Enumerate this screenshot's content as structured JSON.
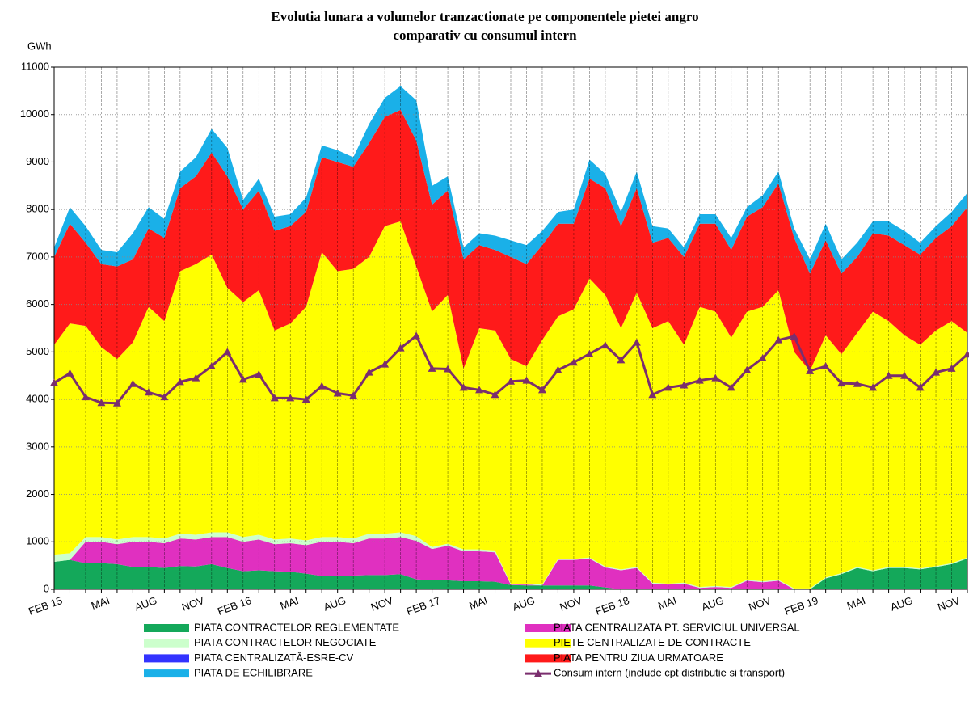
{
  "chart_data": {
    "type": "stacked_area",
    "title": "Evolutia lunara a volumelor tranzactionate pe componentele pietei angro",
    "subtitle": "comparativ cu consumul intern",
    "y_label": "GWh",
    "categories": [
      "FEB 15",
      null,
      null,
      "MAI",
      null,
      null,
      "AUG",
      null,
      null,
      "NOV",
      null,
      null,
      "FEB 16",
      null,
      null,
      "MAI",
      null,
      null,
      "AUG",
      null,
      null,
      "NOV",
      null,
      null,
      "FEB 17",
      null,
      null,
      "MAI",
      null,
      null,
      "AUG",
      null,
      null,
      "NOV",
      null,
      null,
      "FEB 18",
      null,
      null,
      "MAI",
      null,
      null,
      "AUG",
      null,
      null,
      "NOV",
      null,
      null,
      "FEB 19",
      null,
      null,
      "MAI",
      null,
      null,
      "AUG",
      null,
      null,
      "NOV",
      null
    ],
    "ylim": [
      0,
      11000
    ],
    "yticks": [
      0,
      1000,
      2000,
      3000,
      4000,
      5000,
      6000,
      7000,
      8000,
      9000,
      10000,
      11000
    ],
    "grid": true,
    "series": [
      {
        "name": "PIATA CONTRACTELOR REGLEMENTATE",
        "color": "#14a85a",
        "values": [
          580,
          620,
          550,
          550,
          530,
          470,
          470,
          450,
          490,
          480,
          530,
          450,
          380,
          400,
          380,
          370,
          330,
          280,
          280,
          290,
          300,
          300,
          320,
          210,
          190,
          190,
          170,
          170,
          160,
          90,
          80,
          80,
          80,
          80,
          80,
          40,
          0,
          0,
          0,
          0,
          0,
          0,
          0,
          0,
          0,
          0,
          0,
          0,
          0,
          230,
          320,
          450,
          380,
          450,
          450,
          420,
          470,
          530,
          650
        ]
      },
      {
        "name": "PIATA CENTRALIZATA PT. SERVICIUL UNIVERSAL",
        "color": "#e030c0",
        "values": [
          0,
          0,
          450,
          450,
          420,
          530,
          530,
          520,
          580,
          570,
          570,
          650,
          620,
          650,
          570,
          600,
          600,
          720,
          720,
          680,
          770,
          770,
          780,
          810,
          660,
          730,
          630,
          630,
          620,
          10,
          20,
          0,
          540,
          540,
          570,
          420,
          400,
          450,
          120,
          100,
          120,
          30,
          50,
          30,
          180,
          150,
          180,
          0,
          0,
          0,
          0,
          0,
          0,
          0,
          0,
          0,
          0,
          0,
          0
        ]
      },
      {
        "name": "PIATA CONTRACTELOR NEGOCIATE",
        "color": "#ccffcc",
        "values": [
          150,
          140,
          100,
          100,
          100,
          100,
          100,
          100,
          100,
          100,
          100,
          100,
          100,
          100,
          100,
          100,
          100,
          100,
          100,
          100,
          100,
          100,
          100,
          100,
          40,
          40,
          40,
          40,
          40,
          20,
          20,
          20,
          20,
          20,
          20,
          20,
          20,
          20,
          20,
          20,
          20,
          20,
          20,
          20,
          20,
          20,
          20,
          20,
          20,
          20,
          20,
          20,
          20,
          20,
          20,
          20,
          20,
          20,
          20
        ]
      },
      {
        "name": "PIETE CENTRALIZATE DE CONTRACTE",
        "color": "#ffff00",
        "values": [
          4420,
          4840,
          4450,
          4000,
          3800,
          4100,
          4850,
          4580,
          5530,
          5700,
          5850,
          5150,
          4950,
          5150,
          4400,
          4530,
          4920,
          6000,
          5600,
          5680,
          5830,
          6480,
          6550,
          5680,
          4960,
          5240,
          3810,
          4660,
          4630,
          4730,
          4580,
          5150,
          5110,
          5260,
          5880,
          5720,
          5080,
          5780,
          5360,
          5530,
          5010,
          5900,
          5780,
          5250,
          5650,
          5780,
          6100,
          4980,
          4580,
          5100,
          4610,
          4930,
          5450,
          5180,
          4880,
          4710,
          4960,
          5100,
          4730
        ]
      },
      {
        "name": "PIATA CENTRALIZATĂ-ESRE-CV",
        "color": "#3333ff",
        "values": [
          0,
          0,
          0,
          0,
          0,
          0,
          0,
          0,
          0,
          0,
          0,
          0,
          0,
          0,
          0,
          0,
          0,
          0,
          0,
          0,
          0,
          0,
          0,
          0,
          0,
          0,
          0,
          0,
          0,
          0,
          0,
          0,
          0,
          0,
          0,
          0,
          0,
          0,
          0,
          0,
          0,
          0,
          0,
          0,
          0,
          0,
          0,
          0,
          0,
          0,
          0,
          0,
          0,
          0,
          0,
          0,
          0,
          0,
          0
        ]
      },
      {
        "name": "PIATA PENTRU ZIUA URMATOARE",
        "color": "#ff1a1a",
        "values": [
          1850,
          2100,
          1750,
          1750,
          1950,
          1750,
          1650,
          1750,
          1750,
          1850,
          2150,
          2350,
          1950,
          2100,
          2100,
          2050,
          2000,
          2000,
          2300,
          2150,
          2400,
          2300,
          2350,
          2650,
          2250,
          2200,
          2300,
          1750,
          1700,
          2150,
          2150,
          2000,
          1950,
          1800,
          2100,
          2250,
          2150,
          2200,
          1800,
          1750,
          1850,
          1750,
          1850,
          1850,
          2000,
          2100,
          2250,
          2400,
          2050,
          2000,
          1700,
          1600,
          1650,
          1800,
          1900,
          1900,
          1950,
          2000,
          2650
        ]
      },
      {
        "name": "PIATA DE ECHILIBRARE",
        "color": "#1ab0e8",
        "values": [
          200,
          350,
          350,
          300,
          300,
          550,
          450,
          400,
          350,
          400,
          500,
          600,
          200,
          250,
          300,
          250,
          300,
          250,
          250,
          200,
          400,
          400,
          500,
          850,
          400,
          300,
          250,
          250,
          300,
          350,
          400,
          300,
          250,
          300,
          400,
          300,
          300,
          350,
          350,
          200,
          200,
          200,
          200,
          250,
          200,
          250,
          250,
          200,
          300,
          350,
          300,
          300,
          250,
          300,
          300,
          250,
          250,
          300,
          300
        ]
      },
      {
        "name": "Consum intern (include cpt distributie si transport)",
        "color": "#7a2e6e",
        "type": "line",
        "values": [
          4350,
          4550,
          4050,
          3930,
          3920,
          4330,
          4150,
          4050,
          4370,
          4450,
          4700,
          5000,
          4420,
          4530,
          4030,
          4030,
          4000,
          4280,
          4130,
          4080,
          4570,
          4740,
          5080,
          5340,
          4650,
          4640,
          4250,
          4200,
          4100,
          4380,
          4400,
          4200,
          4620,
          4780,
          4960,
          5140,
          4830,
          5200,
          4100,
          4250,
          4300,
          4400,
          4450,
          4250,
          4620,
          4870,
          5250,
          5330,
          4600,
          4700,
          4340,
          4330,
          4250,
          4500,
          4500,
          4250,
          4570,
          4650,
          4950
        ]
      }
    ]
  }
}
